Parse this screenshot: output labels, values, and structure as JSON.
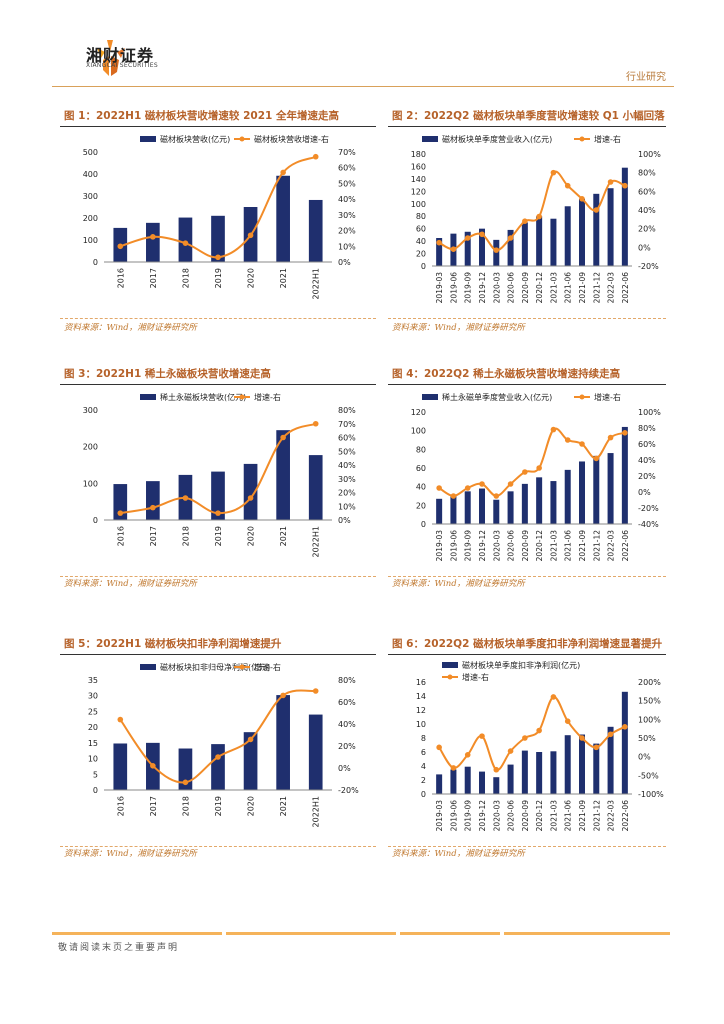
{
  "header": {
    "company_cn": "湘财证券",
    "company_en": "XIANGCAI SECURITIES",
    "section": "行业研究"
  },
  "colors": {
    "bar": "#1f2f6e",
    "line": "#f28c28",
    "title": "#b6622a",
    "source": "#c0782f"
  },
  "charts": [
    {
      "title": "图 1：2022H1 磁材板块营收增速较 2021 全年增速走高",
      "source": "资料来源：Wind，湘财证券研究所"
    },
    {
      "title": "图 2：2022Q2 磁材板块单季度营收增速较 Q1 小幅回落",
      "source": "资料来源：Wind，湘财证券研究所"
    },
    {
      "title": "图 3：2022H1 稀土永磁板块营收增速走高",
      "source": "资料来源：Wind，湘财证券研究所"
    },
    {
      "title": "图 4：2022Q2 稀土永磁板块营收增速持续走高",
      "source": "资料来源：Wind，湘财证券研究所"
    },
    {
      "title": "图 5：2022H1 磁材板块扣非净利润增速提升",
      "source": "资料来源：Wind，湘财证券研究所"
    },
    {
      "title": "图 6：2022Q2 磁材板块单季度扣非净利润增速显著提升",
      "source": "资料来源：Wind，湘财证券研究所"
    }
  ],
  "chart_data": [
    {
      "type": "bar+line",
      "categories": [
        "2016",
        "2017",
        "2018",
        "2019",
        "2020",
        "2021",
        "2022H1"
      ],
      "series": [
        {
          "name": "磁材板块营收(亿元)",
          "kind": "bar",
          "axis": "left",
          "values": [
            155,
            178,
            202,
            210,
            250,
            392,
            282
          ]
        },
        {
          "name": "磁材板块营收增速-右",
          "kind": "line",
          "axis": "right",
          "values": [
            0.1,
            0.16,
            0.12,
            0.03,
            0.17,
            0.57,
            0.67
          ]
        }
      ],
      "ylim_left": [
        0,
        500
      ],
      "ticks_left": [
        0,
        100,
        200,
        300,
        400,
        500
      ],
      "ylim_right": [
        0,
        0.7
      ],
      "ticks_right": [
        "0%",
        "10%",
        "20%",
        "30%",
        "40%",
        "50%",
        "60%",
        "70%"
      ],
      "legend": "top"
    },
    {
      "type": "bar+line",
      "categories": [
        "2019-03",
        "2019-06",
        "2019-09",
        "2019-12",
        "2020-03",
        "2020-06",
        "2020-09",
        "2020-12",
        "2021-03",
        "2021-06",
        "2021-09",
        "2021-12",
        "2022-03",
        "2022-06"
      ],
      "series": [
        {
          "name": "磁材板块单季度营业收入(亿元)",
          "kind": "bar",
          "axis": "left",
          "values": [
            45,
            52,
            55,
            60,
            42,
            58,
            70,
            80,
            76,
            96,
            108,
            116,
            125,
            158
          ]
        },
        {
          "name": "增速-右",
          "kind": "line",
          "axis": "right",
          "values": [
            0.05,
            -0.02,
            0.1,
            0.14,
            -0.03,
            0.1,
            0.28,
            0.33,
            0.8,
            0.66,
            0.52,
            0.4,
            0.7,
            0.66
          ]
        }
      ],
      "ylim_left": [
        0,
        180
      ],
      "ticks_left": [
        0,
        20,
        40,
        60,
        80,
        100,
        120,
        140,
        160,
        180
      ],
      "ylim_right": [
        -0.2,
        1.0
      ],
      "ticks_right": [
        "-20%",
        "0%",
        "20%",
        "40%",
        "60%",
        "80%",
        "100%"
      ],
      "legend": "top"
    },
    {
      "type": "bar+line",
      "categories": [
        "2016",
        "2017",
        "2018",
        "2019",
        "2020",
        "2021",
        "2022H1"
      ],
      "series": [
        {
          "name": "稀土永磁板块营收(亿元)",
          "kind": "bar",
          "axis": "left",
          "values": [
            98,
            106,
            123,
            132,
            153,
            245,
            177
          ]
        },
        {
          "name": "增速-右",
          "kind": "line",
          "axis": "right",
          "values": [
            0.05,
            0.09,
            0.16,
            0.05,
            0.16,
            0.6,
            0.7
          ]
        }
      ],
      "ylim_left": [
        0,
        300
      ],
      "ticks_left": [
        0,
        100,
        200,
        300
      ],
      "ylim_right": [
        0,
        0.8
      ],
      "ticks_right": [
        "0%",
        "10%",
        "20%",
        "30%",
        "40%",
        "50%",
        "60%",
        "70%",
        "80%"
      ],
      "legend": "top"
    },
    {
      "type": "bar+line",
      "categories": [
        "2019-03",
        "2019-06",
        "2019-09",
        "2019-12",
        "2020-03",
        "2020-06",
        "2020-09",
        "2020-12",
        "2021-03",
        "2021-06",
        "2021-09",
        "2021-12",
        "2022-03",
        "2022-06"
      ],
      "series": [
        {
          "name": "稀土永磁单季度营业收入(亿元)",
          "kind": "bar",
          "axis": "left",
          "values": [
            27,
            30,
            35,
            38,
            26,
            35,
            43,
            50,
            46,
            58,
            67,
            73,
            76,
            104
          ]
        },
        {
          "name": "增速-右",
          "kind": "line",
          "axis": "right",
          "values": [
            0.05,
            -0.05,
            0.05,
            0.1,
            -0.05,
            0.1,
            0.25,
            0.3,
            0.78,
            0.65,
            0.6,
            0.42,
            0.68,
            0.74
          ]
        }
      ],
      "ylim_left": [
        0,
        120
      ],
      "ticks_left": [
        0,
        20,
        40,
        60,
        80,
        100,
        120
      ],
      "ylim_right": [
        -0.4,
        1.0
      ],
      "ticks_right": [
        "-40%",
        "-20%",
        "0%",
        "20%",
        "40%",
        "60%",
        "80%",
        "100%"
      ],
      "legend": "top"
    },
    {
      "type": "bar+line",
      "categories": [
        "2016",
        "2017",
        "2018",
        "2019",
        "2020",
        "2021",
        "2022H1"
      ],
      "series": [
        {
          "name": "磁材板块扣非归母净利润(亿元)",
          "kind": "bar",
          "axis": "left",
          "values": [
            14.8,
            15.0,
            13.2,
            14.6,
            18.4,
            30.2,
            24.0
          ]
        },
        {
          "name": "增速-右",
          "kind": "line",
          "axis": "right",
          "values": [
            0.44,
            0.02,
            -0.13,
            0.1,
            0.26,
            0.66,
            0.7
          ]
        }
      ],
      "ylim_left": [
        0,
        35
      ],
      "ticks_left": [
        0,
        5,
        10,
        15,
        20,
        25,
        30,
        35
      ],
      "ylim_right": [
        -0.2,
        0.8
      ],
      "ticks_right": [
        "-20%",
        "0%",
        "20%",
        "40%",
        "60%",
        "80%"
      ],
      "legend": "top"
    },
    {
      "type": "bar+line",
      "categories": [
        "2019-03",
        "2019-06",
        "2019-09",
        "2019-12",
        "2020-03",
        "2020-06",
        "2020-09",
        "2020-12",
        "2021-03",
        "2021-06",
        "2021-09",
        "2021-12",
        "2022-03",
        "2022-06"
      ],
      "series": [
        {
          "name": "磁材板块单季度扣非净利润(亿元)",
          "kind": "bar",
          "axis": "left",
          "values": [
            2.8,
            3.5,
            3.9,
            3.2,
            2.4,
            4.2,
            6.2,
            6.0,
            6.1,
            8.4,
            8.5,
            7.2,
            9.6,
            14.6
          ]
        },
        {
          "name": "增速-右",
          "kind": "line",
          "axis": "right",
          "values": [
            0.25,
            -0.3,
            0.05,
            0.55,
            -0.35,
            0.15,
            0.5,
            0.7,
            1.6,
            0.95,
            0.5,
            0.25,
            0.6,
            0.8
          ]
        }
      ],
      "ylim_left": [
        0,
        16
      ],
      "ticks_left": [
        0,
        2,
        4,
        6,
        8,
        10,
        12,
        14,
        16
      ],
      "ylim_right": [
        -1.0,
        2.0
      ],
      "ticks_right": [
        "-100%",
        "-50%",
        "0%",
        "50%",
        "100%",
        "150%",
        "200%"
      ],
      "legend": "top-left"
    }
  ],
  "footer": {
    "disclaimer": "敬请阅读末页之重要声明"
  }
}
